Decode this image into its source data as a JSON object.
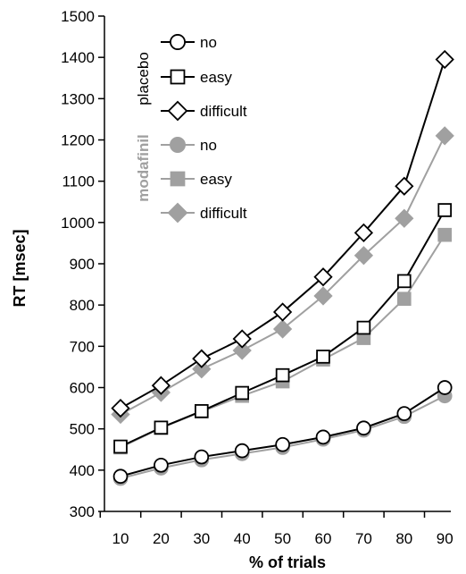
{
  "chart_data": {
    "type": "line",
    "x": [
      10,
      20,
      30,
      40,
      50,
      60,
      70,
      80,
      90
    ],
    "xlabel": "% of trials",
    "ylabel": "RT [msec]",
    "ylim": [
      300,
      1500
    ],
    "yticks": [
      300,
      400,
      500,
      600,
      700,
      800,
      900,
      1000,
      1100,
      1200,
      1300,
      1400,
      1500
    ],
    "legend": {
      "placement": "top-left",
      "groups": [
        {
          "label": "placebo",
          "color": "#000000"
        },
        {
          "label": "modafinil",
          "color": "#a0a0a0"
        }
      ]
    },
    "series": [
      {
        "name": "no",
        "group": "placebo",
        "marker": "circle",
        "color": "#000000",
        "fill": "#ffffff",
        "values": [
          385,
          412,
          432,
          447,
          462,
          480,
          502,
          537,
          600
        ]
      },
      {
        "name": "easy",
        "group": "placebo",
        "marker": "square",
        "color": "#000000",
        "fill": "#ffffff",
        "values": [
          457,
          503,
          543,
          587,
          630,
          675,
          745,
          858,
          1030
        ]
      },
      {
        "name": "difficult",
        "group": "placebo",
        "marker": "diamond",
        "color": "#000000",
        "fill": "#ffffff",
        "values": [
          550,
          605,
          670,
          718,
          783,
          868,
          975,
          1088,
          1395
        ]
      },
      {
        "name": "no",
        "group": "modafinil",
        "marker": "circle",
        "color": "#a0a0a0",
        "fill": "#a0a0a0",
        "values": [
          380,
          405,
          425,
          440,
          455,
          475,
          497,
          530,
          580
        ]
      },
      {
        "name": "easy",
        "group": "modafinil",
        "marker": "square",
        "color": "#a0a0a0",
        "fill": "#a0a0a0",
        "values": [
          455,
          502,
          542,
          580,
          615,
          668,
          720,
          815,
          970
        ]
      },
      {
        "name": "difficult",
        "group": "modafinil",
        "marker": "diamond",
        "color": "#a0a0a0",
        "fill": "#a0a0a0",
        "values": [
          535,
          588,
          645,
          690,
          742,
          822,
          920,
          1010,
          1210
        ]
      }
    ]
  }
}
